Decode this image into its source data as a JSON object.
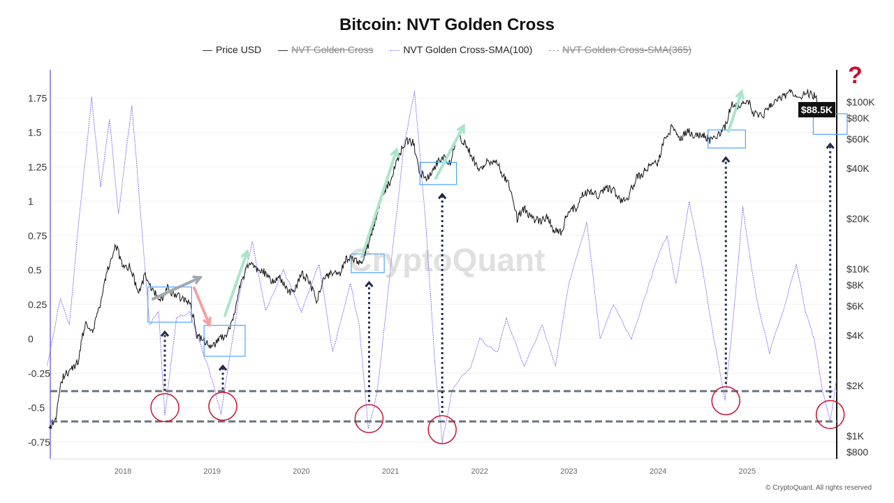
{
  "chart_data": {
    "type": "line",
    "title": "Bitcoin: NVT Golden Cross",
    "legend": [
      {
        "label": "Price USD",
        "style": "solid",
        "color": "#333333",
        "hidden": false
      },
      {
        "label": "NVT Golden Cross",
        "style": "solid",
        "color": "#333333",
        "hidden": true
      },
      {
        "label": "NVT Golden Cross-SMA(100)",
        "style": "dotted",
        "color": "#7b68ee",
        "hidden": false
      },
      {
        "label": "NVT Golden Cross-SMA(365)",
        "style": "dashed",
        "color": "#888888",
        "hidden": true
      }
    ],
    "legend_position": "top",
    "x_ticks": [
      "2018",
      "2019",
      "2020",
      "2021",
      "2022",
      "2023",
      "2024",
      "2025"
    ],
    "y_left_ticks": [
      "1.75",
      "1.5",
      "1.25",
      "1",
      "0.75",
      "0.5",
      "0.25",
      "0",
      "-0.25",
      "-0.5",
      "-0.75"
    ],
    "y_left_range": [
      -0.87,
      1.95
    ],
    "y_right_ticks": [
      "$100K",
      "$80K",
      "$60K",
      "$40K",
      "$20K",
      "$10K",
      "$8K",
      "$6K",
      "$4K",
      "$2K",
      "$1K",
      "$800"
    ],
    "y_right_scale": "log",
    "current_price_label": "$88.5K",
    "reference_levels": [
      -0.38,
      -0.6
    ],
    "series": [
      {
        "name": "Price USD",
        "axis": "right",
        "points": [
          [
            2017.17,
            1100
          ],
          [
            2017.25,
            1300
          ],
          [
            2017.33,
            2300
          ],
          [
            2017.42,
            2500
          ],
          [
            2017.5,
            2800
          ],
          [
            2017.58,
            4700
          ],
          [
            2017.67,
            4300
          ],
          [
            2017.75,
            6400
          ],
          [
            2017.83,
            10000
          ],
          [
            2017.92,
            14000
          ],
          [
            2018.0,
            10000
          ],
          [
            2018.08,
            10300
          ],
          [
            2018.17,
            7000
          ],
          [
            2018.25,
            9200
          ],
          [
            2018.33,
            7500
          ],
          [
            2018.42,
            6400
          ],
          [
            2018.5,
            7700
          ],
          [
            2018.58,
            7000
          ],
          [
            2018.67,
            6600
          ],
          [
            2018.75,
            6300
          ],
          [
            2018.83,
            4000
          ],
          [
            2018.92,
            3700
          ],
          [
            2019.0,
            3450
          ],
          [
            2019.08,
            3800
          ],
          [
            2019.17,
            4100
          ],
          [
            2019.25,
            5300
          ],
          [
            2019.33,
            8500
          ],
          [
            2019.42,
            10800
          ],
          [
            2019.5,
            10100
          ],
          [
            2019.58,
            9600
          ],
          [
            2019.67,
            8300
          ],
          [
            2019.75,
            9200
          ],
          [
            2019.83,
            7500
          ],
          [
            2019.92,
            7200
          ],
          [
            2020.0,
            9350
          ],
          [
            2020.08,
            8600
          ],
          [
            2020.17,
            6400
          ],
          [
            2020.25,
            8600
          ],
          [
            2020.33,
            9450
          ],
          [
            2020.42,
            9150
          ],
          [
            2020.5,
            11300
          ],
          [
            2020.58,
            11650
          ],
          [
            2020.67,
            10800
          ],
          [
            2020.75,
            13800
          ],
          [
            2020.83,
            19700
          ],
          [
            2020.92,
            29000
          ],
          [
            2021.0,
            33000
          ],
          [
            2021.08,
            45000
          ],
          [
            2021.17,
            58800
          ],
          [
            2021.25,
            57700
          ],
          [
            2021.33,
            37300
          ],
          [
            2021.42,
            35000
          ],
          [
            2021.5,
            41500
          ],
          [
            2021.58,
            47100
          ],
          [
            2021.67,
            43800
          ],
          [
            2021.75,
            61300
          ],
          [
            2021.83,
            57000
          ],
          [
            2021.92,
            46300
          ],
          [
            2022.0,
            38500
          ],
          [
            2022.08,
            43200
          ],
          [
            2022.17,
            45500
          ],
          [
            2022.25,
            37700
          ],
          [
            2022.33,
            31800
          ],
          [
            2022.42,
            19900
          ],
          [
            2022.5,
            23300
          ],
          [
            2022.58,
            20000
          ],
          [
            2022.67,
            19400
          ],
          [
            2022.75,
            20500
          ],
          [
            2022.83,
            17200
          ],
          [
            2022.92,
            16500
          ],
          [
            2023.0,
            23100
          ],
          [
            2023.08,
            23100
          ],
          [
            2023.17,
            28500
          ],
          [
            2023.25,
            29200
          ],
          [
            2023.33,
            27200
          ],
          [
            2023.42,
            30500
          ],
          [
            2023.5,
            29200
          ],
          [
            2023.58,
            26000
          ],
          [
            2023.67,
            27000
          ],
          [
            2023.75,
            34500
          ],
          [
            2023.83,
            37700
          ],
          [
            2023.92,
            42300
          ],
          [
            2024.0,
            42600
          ],
          [
            2024.08,
            61200
          ],
          [
            2024.17,
            71300
          ],
          [
            2024.25,
            60700
          ],
          [
            2024.33,
            67500
          ],
          [
            2024.42,
            62700
          ],
          [
            2024.5,
            64600
          ],
          [
            2024.58,
            59000
          ],
          [
            2024.67,
            63300
          ],
          [
            2024.75,
            70200
          ],
          [
            2024.83,
            96400
          ],
          [
            2024.92,
            93400
          ],
          [
            2025.0,
            102400
          ],
          [
            2025.08,
            84400
          ],
          [
            2025.17,
            82500
          ],
          [
            2025.25,
            94200
          ],
          [
            2025.33,
            104600
          ],
          [
            2025.42,
            107100
          ],
          [
            2025.5,
            115800
          ],
          [
            2025.58,
            108200
          ],
          [
            2025.67,
            114000
          ],
          [
            2025.75,
            109500
          ],
          [
            2025.83,
            90000
          ],
          [
            2025.92,
            88500
          ]
        ]
      },
      {
        "name": "NVT Golden Cross-SMA(100)",
        "axis": "left",
        "points": [
          [
            2017.15,
            -0.2
          ],
          [
            2017.3,
            0.3
          ],
          [
            2017.4,
            0.1
          ],
          [
            2017.52,
            0.95
          ],
          [
            2017.65,
            1.75
          ],
          [
            2017.75,
            1.1
          ],
          [
            2017.85,
            1.6
          ],
          [
            2017.95,
            0.9
          ],
          [
            2018.1,
            1.7
          ],
          [
            2018.2,
            0.9
          ],
          [
            2018.3,
            0.1
          ],
          [
            2018.4,
            0.2
          ],
          [
            2018.47,
            -0.55
          ],
          [
            2018.6,
            0.15
          ],
          [
            2018.75,
            0.2
          ],
          [
            2018.9,
            -0.1
          ],
          [
            2019.0,
            -0.3
          ],
          [
            2019.1,
            -0.55
          ],
          [
            2019.3,
            0.3
          ],
          [
            2019.45,
            0.7
          ],
          [
            2019.6,
            0.2
          ],
          [
            2019.8,
            0.5
          ],
          [
            2020.0,
            0.2
          ],
          [
            2020.2,
            0.55
          ],
          [
            2020.35,
            -0.1
          ],
          [
            2020.55,
            0.4
          ],
          [
            2020.65,
            0.1
          ],
          [
            2020.75,
            -0.65
          ],
          [
            2020.85,
            -0.4
          ],
          [
            2021.0,
            0.5
          ],
          [
            2021.15,
            1.4
          ],
          [
            2021.27,
            1.8
          ],
          [
            2021.4,
            0.8
          ],
          [
            2021.5,
            -0.2
          ],
          [
            2021.58,
            -0.75
          ],
          [
            2021.7,
            -0.35
          ],
          [
            2021.9,
            -0.2
          ],
          [
            2022.0,
            0.0
          ],
          [
            2022.2,
            -0.1
          ],
          [
            2022.3,
            0.15
          ],
          [
            2022.5,
            -0.2
          ],
          [
            2022.7,
            0.1
          ],
          [
            2022.85,
            -0.2
          ],
          [
            2023.0,
            0.4
          ],
          [
            2023.2,
            0.85
          ],
          [
            2023.35,
            0.0
          ],
          [
            2023.5,
            0.25
          ],
          [
            2023.7,
            0.0
          ],
          [
            2023.85,
            0.3
          ],
          [
            2024.0,
            0.6
          ],
          [
            2024.1,
            0.75
          ],
          [
            2024.2,
            0.4
          ],
          [
            2024.35,
            1.0
          ],
          [
            2024.5,
            0.5
          ],
          [
            2024.6,
            0.1
          ],
          [
            2024.75,
            -0.45
          ],
          [
            2024.85,
            0.2
          ],
          [
            2024.95,
            0.95
          ],
          [
            2025.1,
            0.3
          ],
          [
            2025.25,
            -0.1
          ],
          [
            2025.4,
            0.2
          ],
          [
            2025.55,
            0.55
          ],
          [
            2025.65,
            0.2
          ],
          [
            2025.75,
            0.0
          ],
          [
            2025.85,
            -0.4
          ],
          [
            2025.93,
            -0.6
          ],
          [
            2026.0,
            -0.3
          ]
        ]
      }
    ]
  },
  "watermark": "CryptoQuant",
  "copyright": "© CryptoQuant. All rights reserved",
  "question_mark": "?"
}
